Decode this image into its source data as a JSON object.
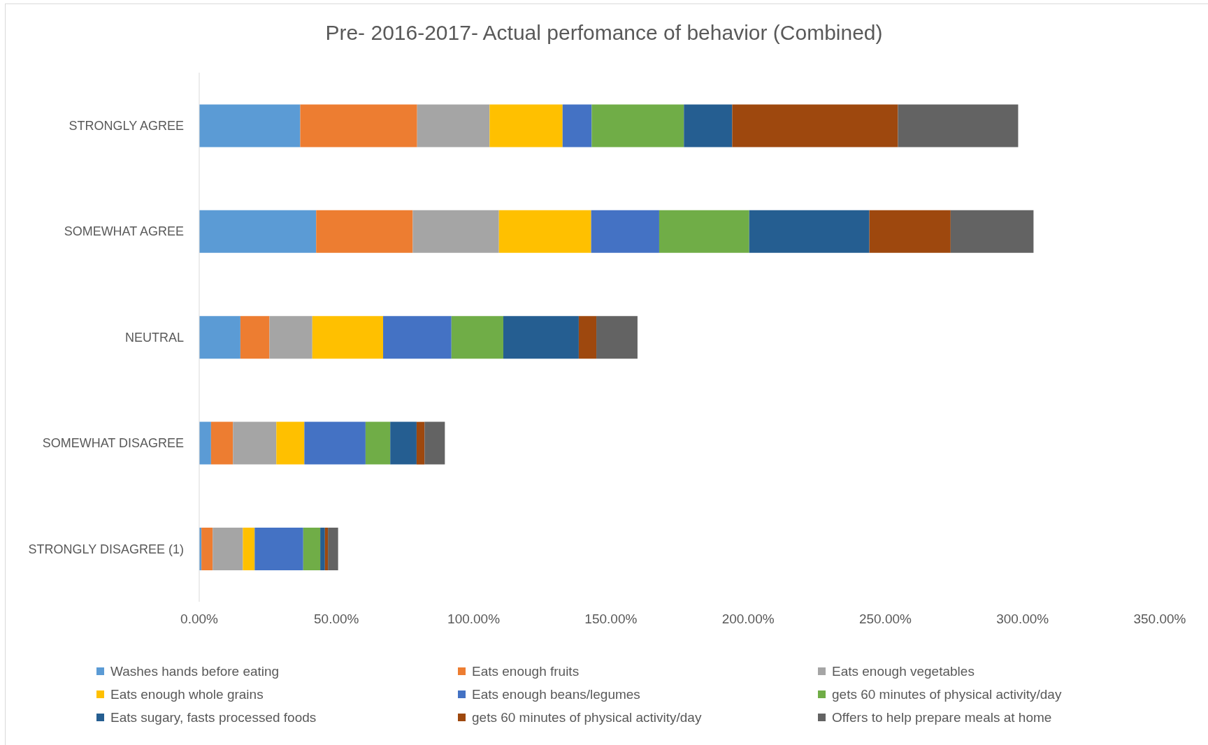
{
  "chart_data": {
    "type": "bar",
    "orientation": "horizontal",
    "stacked": true,
    "title": "Pre- 2016-2017- Actual perfomance of behavior (Combined)",
    "categories": [
      "STRONGLY AGREE",
      "SOMEWHAT AGREE",
      "NEUTRAL",
      "SOMEWHAT DISAGREE",
      "STRONGLY DISAGREE (1)"
    ],
    "series": [
      {
        "name": "Washes hands before eating",
        "color": "#5b9bd5",
        "values": [
          36.8,
          42.6,
          15.0,
          4.3,
          0.8
        ]
      },
      {
        "name": "Eats enough fruits",
        "color": "#ed7d31",
        "values": [
          42.6,
          35.2,
          10.6,
          8.0,
          4.1
        ]
      },
      {
        "name": "Eats enough vegetables",
        "color": "#a5a5a5",
        "values": [
          26.4,
          31.4,
          15.6,
          15.8,
          11.0
        ]
      },
      {
        "name": "Eats enough whole grains",
        "color": "#ffc000",
        "values": [
          26.6,
          33.6,
          25.8,
          10.2,
          4.3
        ]
      },
      {
        "name": "Eats enough beans/legumes",
        "color": "#4472c4",
        "values": [
          10.6,
          24.8,
          24.9,
          22.3,
          17.7
        ]
      },
      {
        "name": "gets 60 minutes of physical activity/day",
        "color": "#70ad47",
        "values": [
          33.6,
          32.8,
          18.9,
          9.0,
          6.2
        ]
      },
      {
        "name": "Eats sugary, fasts processed foods",
        "color": "#255e91",
        "values": [
          17.6,
          43.8,
          27.5,
          9.6,
          1.7
        ]
      },
      {
        "name": "gets 60 minutes of physical activity/day",
        "color": "#9e480e",
        "values": [
          60.4,
          29.6,
          6.4,
          2.9,
          1.1
        ]
      },
      {
        "name": "Offers to help prepare meals at home",
        "color": "#636363",
        "values": [
          43.8,
          30.2,
          15.0,
          7.4,
          3.7
        ]
      }
    ],
    "xlim": [
      0,
      350
    ],
    "xticks": [
      {
        "value": 0,
        "label": "0.00%"
      },
      {
        "value": 50,
        "label": "50.00%"
      },
      {
        "value": 100,
        "label": "100.00%"
      },
      {
        "value": 150,
        "label": "150.00%"
      },
      {
        "value": 200,
        "label": "200.00%"
      },
      {
        "value": 250,
        "label": "250.00%"
      },
      {
        "value": 300,
        "label": "300.00%"
      },
      {
        "value": 350,
        "label": "350.00%"
      }
    ],
    "legend": "bottom"
  }
}
